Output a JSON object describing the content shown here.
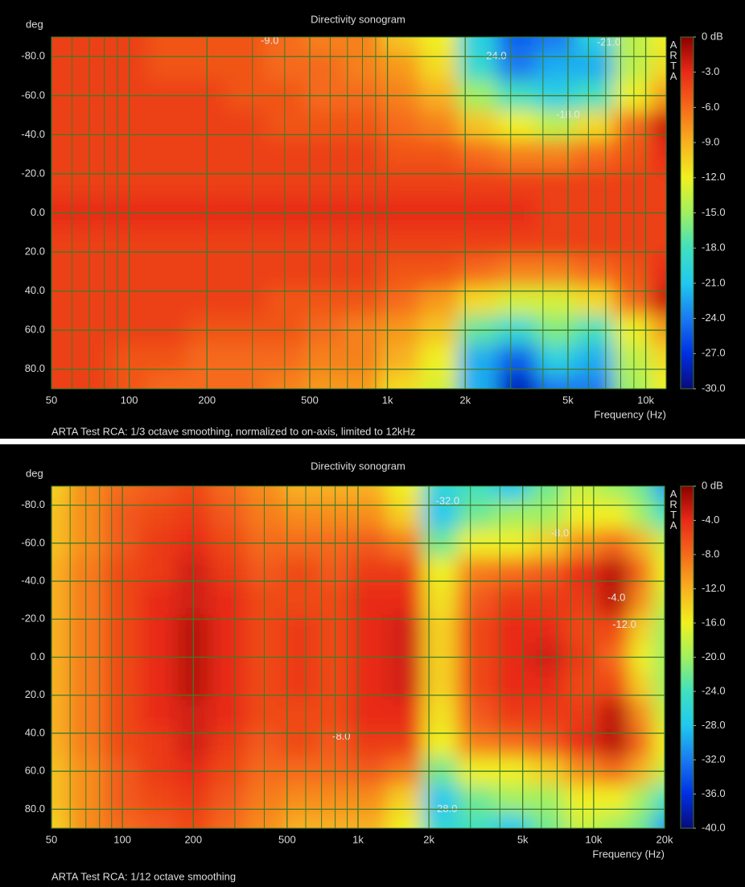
{
  "chart_data": [
    {
      "type": "heatmap",
      "title": "Directivity sonogram",
      "y_label": "deg",
      "x_label": "Frequency (Hz)",
      "footnote": "ARTA Test RCA: 1/3 octave smoothing, normalized to on-axis, limited to 12kHz",
      "watermark": "ARTA",
      "log_x": true,
      "xlim": [
        50,
        12000
      ],
      "ylim": [
        90,
        -90
      ],
      "zlim": [
        -30,
        0
      ],
      "xticks": [
        50,
        100,
        200,
        500,
        {
          "value": 1000,
          "label": "1k"
        },
        {
          "value": 2000,
          "label": "2k"
        },
        {
          "value": 5000,
          "label": "5k"
        },
        {
          "value": 10000,
          "label": "10k"
        }
      ],
      "xgrid": [
        60,
        70,
        80,
        90,
        300,
        400,
        600,
        700,
        800,
        900,
        3000,
        4000,
        6000,
        7000,
        8000,
        9000
      ],
      "yticks": [
        {
          "value": -80,
          "label": "-80.0"
        },
        {
          "value": -60,
          "label": "-60.0"
        },
        {
          "value": -40,
          "label": "-40.0"
        },
        {
          "value": -20,
          "label": "-20.0"
        },
        {
          "value": 0,
          "label": "0.0"
        },
        {
          "value": 20,
          "label": "20.0"
        },
        {
          "value": 40,
          "label": "40.0"
        },
        {
          "value": 60,
          "label": "60.0"
        },
        {
          "value": 80,
          "label": "80.0"
        }
      ],
      "zticks": [
        {
          "value": 0,
          "label": "0 dB"
        },
        {
          "value": -3,
          "label": "-3.0"
        },
        {
          "value": -6,
          "label": "-6.0"
        },
        {
          "value": -9,
          "label": "-9.0"
        },
        {
          "value": -12,
          "label": "-12.0"
        },
        {
          "value": -15,
          "label": "-15.0"
        },
        {
          "value": -18,
          "label": "-18.0"
        },
        {
          "value": -21,
          "label": "-21.0"
        },
        {
          "value": -24,
          "label": "-24.0"
        },
        {
          "value": -27,
          "label": "-27.0"
        },
        {
          "value": -30,
          "label": "-30.0"
        }
      ],
      "colors": [
        "#0a0a7a",
        "#0030e0",
        "#1a7af0",
        "#20c8f0",
        "#40e0c0",
        "#a0f060",
        "#f0f020",
        "#f8b020",
        "#f56a1a",
        "#e82a18",
        "#8b0000"
      ],
      "grid": true,
      "grid_color": "#3f7a2a",
      "x": [
        50,
        70,
        100,
        140,
        200,
        280,
        400,
        560,
        800,
        1100,
        1600,
        2200,
        3200,
        4500,
        6300,
        9000,
        12000
      ],
      "y": [
        -90,
        -75,
        -60,
        -45,
        -30,
        -15,
        0,
        15,
        30,
        45,
        60,
        75,
        90
      ],
      "z": [
        [
          -4,
          -4,
          -4,
          -5,
          -5,
          -5,
          -6,
          -7,
          -7,
          -10,
          -12,
          -20,
          -25,
          -24,
          -20,
          -14,
          -12
        ],
        [
          -4,
          -4,
          -4,
          -5,
          -5,
          -5,
          -6,
          -6,
          -7,
          -8,
          -11,
          -19,
          -24,
          -22,
          -22,
          -14,
          -11
        ],
        [
          -4,
          -4,
          -4,
          -4,
          -4,
          -5,
          -5,
          -6,
          -6,
          -7,
          -9,
          -15,
          -18,
          -20,
          -18,
          -12,
          -8
        ],
        [
          -4,
          -4,
          -4,
          -4,
          -4,
          -4,
          -5,
          -5,
          -5,
          -6,
          -7,
          -10,
          -12,
          -14,
          -11,
          -6,
          -2
        ],
        [
          -4,
          -4,
          -4,
          -4,
          -4,
          -4,
          -4,
          -4,
          -4,
          -5,
          -5,
          -6,
          -7,
          -7,
          -6,
          -5,
          -3
        ],
        [
          -4,
          -4,
          -4,
          -4,
          -4,
          -4,
          -4,
          -4,
          -4,
          -4,
          -4,
          -4,
          -4,
          -4,
          -4,
          -4,
          -4
        ],
        [
          -3,
          -3,
          -3,
          -3,
          -3,
          -3,
          -3,
          -3,
          -3,
          -3,
          -3,
          -3,
          -3,
          -4,
          -4,
          -4,
          -4
        ],
        [
          -4,
          -4,
          -4,
          -4,
          -4,
          -4,
          -4,
          -4,
          -4,
          -4,
          -4,
          -4,
          -4,
          -4,
          -4,
          -4,
          -4
        ],
        [
          -4,
          -4,
          -4,
          -4,
          -4,
          -4,
          -4,
          -4,
          -4,
          -5,
          -5,
          -6,
          -7,
          -7,
          -6,
          -5,
          -3
        ],
        [
          -4,
          -4,
          -4,
          -4,
          -4,
          -4,
          -5,
          -5,
          -5,
          -6,
          -8,
          -11,
          -13,
          -13,
          -11,
          -6,
          -2
        ],
        [
          -4,
          -4,
          -4,
          -4,
          -5,
          -5,
          -5,
          -6,
          -7,
          -8,
          -10,
          -17,
          -19,
          -16,
          -18,
          -12,
          -8
        ],
        [
          -4,
          -4,
          -5,
          -5,
          -6,
          -6,
          -6,
          -7,
          -7,
          -9,
          -12,
          -22,
          -25,
          -20,
          -22,
          -14,
          -11
        ],
        [
          -4,
          -4,
          -5,
          -6,
          -6,
          -6,
          -7,
          -8,
          -8,
          -11,
          -13,
          -22,
          -28,
          -24,
          -24,
          -15,
          -12
        ]
      ],
      "annotations": [
        {
          "label": "-9.0",
          "x": 350,
          "y": -88
        },
        {
          "label": "-24.0",
          "x": 2600,
          "y": -80
        },
        {
          "label": "-21.0",
          "x": 7200,
          "y": -87
        },
        {
          "label": "-18.0",
          "x": 5000,
          "y": -50
        }
      ]
    },
    {
      "type": "heatmap",
      "title": "Directivity sonogram",
      "y_label": "deg",
      "x_label": "Frequency (Hz)",
      "footnote": "ARTA Test RCA: 1/12 octave smoothing",
      "watermark": "ARTA",
      "log_x": true,
      "xlim": [
        50,
        20000
      ],
      "ylim": [
        90,
        -90
      ],
      "zlim": [
        -40,
        0
      ],
      "xticks": [
        50,
        100,
        200,
        500,
        {
          "value": 1000,
          "label": "1k"
        },
        {
          "value": 2000,
          "label": "2k"
        },
        {
          "value": 5000,
          "label": "5k"
        },
        {
          "value": 10000,
          "label": "10k"
        },
        {
          "value": 20000,
          "label": "20k"
        }
      ],
      "xgrid": [
        60,
        70,
        80,
        90,
        300,
        400,
        600,
        700,
        800,
        900,
        3000,
        4000,
        6000,
        7000,
        8000,
        9000
      ],
      "yticks": [
        {
          "value": -80,
          "label": "-80.0"
        },
        {
          "value": -60,
          "label": "-60.0"
        },
        {
          "value": -40,
          "label": "-40.0"
        },
        {
          "value": -20,
          "label": "-20.0"
        },
        {
          "value": 0,
          "label": "0.0"
        },
        {
          "value": 20,
          "label": "20.0"
        },
        {
          "value": 40,
          "label": "40.0"
        },
        {
          "value": 60,
          "label": "60.0"
        },
        {
          "value": 80,
          "label": "80.0"
        }
      ],
      "zticks": [
        {
          "value": 0,
          "label": "0 dB"
        },
        {
          "value": -4,
          "label": "-4.0"
        },
        {
          "value": -8,
          "label": "-8.0"
        },
        {
          "value": -12,
          "label": "-12.0"
        },
        {
          "value": -16,
          "label": "-16.0"
        },
        {
          "value": -20,
          "label": "-20.0"
        },
        {
          "value": -24,
          "label": "-24.0"
        },
        {
          "value": -28,
          "label": "-28.0"
        },
        {
          "value": -32,
          "label": "-32.0"
        },
        {
          "value": -36,
          "label": "-36.0"
        },
        {
          "value": -40,
          "label": "-40.0"
        }
      ],
      "colors": [
        "#0a0a7a",
        "#0030e0",
        "#1a7af0",
        "#20c8f0",
        "#40e0c0",
        "#a0f060",
        "#f0f020",
        "#f8b020",
        "#f56a1a",
        "#e82a18",
        "#8b0000"
      ],
      "grid": true,
      "grid_color": "#3f7a2a",
      "x": [
        50,
        70,
        100,
        140,
        200,
        280,
        400,
        560,
        800,
        1100,
        1600,
        2200,
        3200,
        4500,
        6300,
        9000,
        12500,
        16000,
        20000
      ],
      "y": [
        -90,
        -75,
        -60,
        -45,
        -30,
        -15,
        0,
        15,
        30,
        45,
        60,
        75,
        90
      ],
      "z": [
        [
          -14,
          -10,
          -8,
          -7,
          -6,
          -8,
          -10,
          -12,
          -12,
          -12,
          -16,
          -26,
          -24,
          -28,
          -22,
          -18,
          -20,
          -22,
          -30
        ],
        [
          -13,
          -10,
          -7,
          -6,
          -5,
          -7,
          -9,
          -10,
          -10,
          -10,
          -14,
          -28,
          -22,
          -20,
          -20,
          -16,
          -16,
          -20,
          -24
        ],
        [
          -13,
          -10,
          -7,
          -5,
          -4,
          -6,
          -8,
          -8,
          -8,
          -7,
          -9,
          -22,
          -16,
          -16,
          -14,
          -10,
          -8,
          -12,
          -18
        ],
        [
          -12,
          -9,
          -6,
          -5,
          -3,
          -5,
          -7,
          -6,
          -7,
          -5,
          -5,
          -16,
          -9,
          -8,
          -7,
          -4,
          -2,
          -8,
          -16
        ],
        [
          -12,
          -9,
          -6,
          -4,
          -3,
          -4,
          -6,
          -6,
          -6,
          -4,
          -4,
          -15,
          -7,
          -5,
          -5,
          -5,
          -2,
          -10,
          -18
        ],
        [
          -12,
          -9,
          -6,
          -4,
          -2,
          -4,
          -6,
          -5,
          -6,
          -4,
          -3,
          -14,
          -6,
          -4,
          -4,
          -6,
          -6,
          -14,
          -20
        ],
        [
          -12,
          -9,
          -6,
          -4,
          -2,
          -4,
          -6,
          -5,
          -6,
          -4,
          -3,
          -14,
          -6,
          -4,
          -3,
          -5,
          -8,
          -16,
          -20
        ],
        [
          -12,
          -9,
          -6,
          -4,
          -2,
          -4,
          -6,
          -5,
          -6,
          -4,
          -3,
          -14,
          -6,
          -4,
          -4,
          -6,
          -6,
          -14,
          -20
        ],
        [
          -12,
          -9,
          -6,
          -4,
          -3,
          -4,
          -6,
          -6,
          -6,
          -4,
          -4,
          -15,
          -7,
          -5,
          -5,
          -5,
          -2,
          -10,
          -18
        ],
        [
          -12,
          -9,
          -6,
          -5,
          -3,
          -5,
          -7,
          -6,
          -7,
          -5,
          -5,
          -16,
          -9,
          -8,
          -7,
          -4,
          -2,
          -8,
          -16
        ],
        [
          -13,
          -10,
          -7,
          -5,
          -4,
          -6,
          -8,
          -8,
          -8,
          -7,
          -9,
          -22,
          -16,
          -16,
          -14,
          -10,
          -8,
          -12,
          -18
        ],
        [
          -13,
          -10,
          -7,
          -6,
          -5,
          -7,
          -9,
          -10,
          -10,
          -10,
          -14,
          -28,
          -22,
          -20,
          -20,
          -16,
          -16,
          -20,
          -24
        ],
        [
          -14,
          -10,
          -8,
          -7,
          -6,
          -8,
          -10,
          -12,
          -12,
          -12,
          -16,
          -26,
          -24,
          -28,
          -22,
          -18,
          -20,
          -22,
          -30
        ]
      ],
      "annotations": [
        {
          "label": "-32.0",
          "x": 2400,
          "y": -82
        },
        {
          "label": "-8.0",
          "x": 7200,
          "y": -65
        },
        {
          "label": "-4.0",
          "x": 12500,
          "y": -31
        },
        {
          "label": "-12.0",
          "x": 13500,
          "y": -17
        },
        {
          "label": "-8.0",
          "x": 850,
          "y": 42
        },
        {
          "label": "-28.0",
          "x": 2350,
          "y": 80
        }
      ]
    }
  ]
}
